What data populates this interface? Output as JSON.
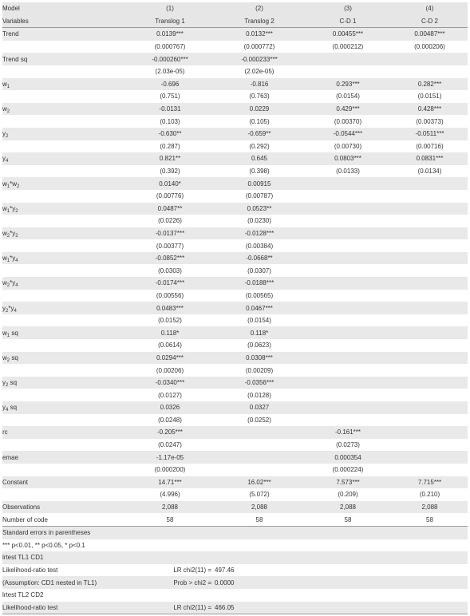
{
  "header": {
    "row1": [
      "Model",
      "(1)",
      "(2)",
      "(3)",
      "(4)"
    ],
    "row2": [
      "Variables",
      "Translog 1",
      "Translog 2",
      "C-D 1",
      "C-D 2"
    ]
  },
  "rows": [
    {
      "label": "Trend",
      "c1": "0.0139***",
      "c2": "0.0132***",
      "c3": "0.00455***",
      "c4": "0.00487***"
    },
    {
      "label": "",
      "c1": "(0.000767)",
      "c2": "(0.000772)",
      "c3": "(0.000212)",
      "c4": "(0.000206)"
    },
    {
      "label": "Trend sq",
      "c1": "-0.000260***",
      "c2": "-0.000233***",
      "c3": "",
      "c4": ""
    },
    {
      "label": "",
      "c1": "(2.03e-05)",
      "c2": "(2.02e-05)",
      "c3": "",
      "c4": ""
    },
    {
      "label": "w",
      "sub": "1",
      "c1": "-0.696",
      "c2": "-0.816",
      "c3": "0.293***",
      "c4": "0.282***"
    },
    {
      "label": "",
      "c1": "(0.751)",
      "c2": "(0.763)",
      "c3": "(0.0154)",
      "c4": "(0.0151)"
    },
    {
      "label": "w",
      "sub": "2",
      "c1": "-0.0131",
      "c2": "0.0229",
      "c3": "0.429***",
      "c4": "0.428***"
    },
    {
      "label": "",
      "c1": "(0.103)",
      "c2": "(0.105)",
      "c3": "(0.00370)",
      "c4": "(0.00373)"
    },
    {
      "label": "y",
      "sub": "2",
      "c1": "-0.630**",
      "c2": "-0.659**",
      "c3": "-0.0544***",
      "c4": "-0.0511***"
    },
    {
      "label": "",
      "c1": "(0.287)",
      "c2": "(0.292)",
      "c3": "(0.00730)",
      "c4": "(0.00716)"
    },
    {
      "label": "y",
      "sub": "4",
      "c1": "0.821**",
      "c2": "0.645",
      "c3": "0.0803***",
      "c4": "0.0831***"
    },
    {
      "label": "",
      "c1": "(0.392)",
      "c2": "(0.398)",
      "c3": "(0.0133)",
      "c4": "(0.0134)"
    },
    {
      "label": "w",
      "sub": "1",
      "mid": "*w",
      "sub2": "2",
      "c1": "0.0140*",
      "c2": "0.00915",
      "c3": "",
      "c4": ""
    },
    {
      "label": "",
      "c1": "(0.00776)",
      "c2": "(0.00787)",
      "c3": "",
      "c4": ""
    },
    {
      "label": "w",
      "sub": "1",
      "mid": "*y",
      "sub2": "2",
      "c1": "0.0487**",
      "c2": "0.0523**",
      "c3": "",
      "c4": ""
    },
    {
      "label": "",
      "c1": "(0.0226)",
      "c2": "(0.0230)",
      "c3": "",
      "c4": ""
    },
    {
      "label": "w",
      "sub": "2",
      "mid": "*y",
      "sub2": "2",
      "c1": "-0.0137***",
      "c2": "-0.0128***",
      "c3": "",
      "c4": ""
    },
    {
      "label": "",
      "c1": "(0.00377)",
      "c2": "(0.00384)",
      "c3": "",
      "c4": ""
    },
    {
      "label": "w",
      "sub": "1",
      "mid": "*y",
      "sub2": "4",
      "c1": "-0.0852***",
      "c2": "-0.0668**",
      "c3": "",
      "c4": ""
    },
    {
      "label": "",
      "c1": "(0.0303)",
      "c2": "(0.0307)",
      "c3": "",
      "c4": ""
    },
    {
      "label": "w",
      "sub": "2",
      "mid": "*y",
      "sub2": "4",
      "c1": "-0.0174***",
      "c2": "-0.0188***",
      "c3": "",
      "c4": ""
    },
    {
      "label": "",
      "c1": "(0.00556)",
      "c2": "(0.00565)",
      "c3": "",
      "c4": ""
    },
    {
      "label": "y",
      "sub": "2",
      "mid": "*y",
      "sub2": "4",
      "c1": "0.0483***",
      "c2": "0.0467***",
      "c3": "",
      "c4": ""
    },
    {
      "label": "",
      "c1": "(0.0152)",
      "c2": "(0.0154)",
      "c3": "",
      "c4": ""
    },
    {
      "label": "w",
      "sub": "1",
      "mid": " sq",
      "c1": "0.118*",
      "c2": "0.118*",
      "c3": "",
      "c4": ""
    },
    {
      "label": "",
      "c1": "(0.0614)",
      "c2": "(0.0623)",
      "c3": "",
      "c4": ""
    },
    {
      "label": "w",
      "sub": "2",
      "mid": " sq",
      "c1": "0.0294***",
      "c2": "0.0308***",
      "c3": "",
      "c4": ""
    },
    {
      "label": "",
      "c1": "(0.00206)",
      "c2": "(0.00209)",
      "c3": "",
      "c4": ""
    },
    {
      "label": "y",
      "sub": "2",
      "mid": " sq",
      "c1": "-0.0340***",
      "c2": "-0.0356***",
      "c3": "",
      "c4": ""
    },
    {
      "label": "",
      "c1": "(0.0127)",
      "c2": "(0.0128)",
      "c3": "",
      "c4": ""
    },
    {
      "label": "y",
      "sub": "4",
      "mid": " sq",
      "c1": "0.0326",
      "c2": "0.0327",
      "c3": "",
      "c4": ""
    },
    {
      "label": "",
      "c1": "(0.0248)",
      "c2": "(0.0252)",
      "c3": "",
      "c4": ""
    },
    {
      "label": "rc",
      "c1": "-0.205***",
      "c2": "",
      "c3": "-0.161***",
      "c4": ""
    },
    {
      "label": "",
      "c1": "(0.0247)",
      "c2": "",
      "c3": "(0.0273)",
      "c4": ""
    },
    {
      "label": "emae",
      "c1": "-1.17e-05",
      "c2": "",
      "c3": "0.000354",
      "c4": ""
    },
    {
      "label": "",
      "c1": "(0.000200)",
      "c2": "",
      "c3": "(0.000224)",
      "c4": ""
    },
    {
      "label": "Constant",
      "c1": "14.71***",
      "c2": "16.02***",
      "c3": "7.573***",
      "c4": "7.715***"
    },
    {
      "label": "",
      "c1": "(4.996)",
      "c2": "(5.072)",
      "c3": "(0.209)",
      "c4": "(0.210)"
    },
    {
      "label": "Observations",
      "c1": "2,088",
      "c2": "2,088",
      "c3": "2,088",
      "c4": "2,088"
    },
    {
      "label": "Number of code",
      "c1": "58",
      "c2": "58",
      "c3": "58",
      "c4": "58"
    }
  ],
  "footer": [
    {
      "text": "Standard errors in parentheses"
    },
    {
      "text": "*** p<0.01, ** p<0.05, * p<0.1"
    },
    {
      "text": "lrtest TL1 CD1"
    },
    {
      "text": "Likelihood-ratio test",
      "stat": "LR chi2(11) =",
      "value": "497.46"
    },
    {
      "text": "(Assumption: CD1 nested in TL1)",
      "stat": "Prob > chi2 =",
      "value": "0.0000"
    },
    {
      "text": "lrtest TL2 CD2"
    },
    {
      "text": "Likelihood-ratio test",
      "stat": "LR chi2(11) =",
      "value": "466.05"
    }
  ]
}
